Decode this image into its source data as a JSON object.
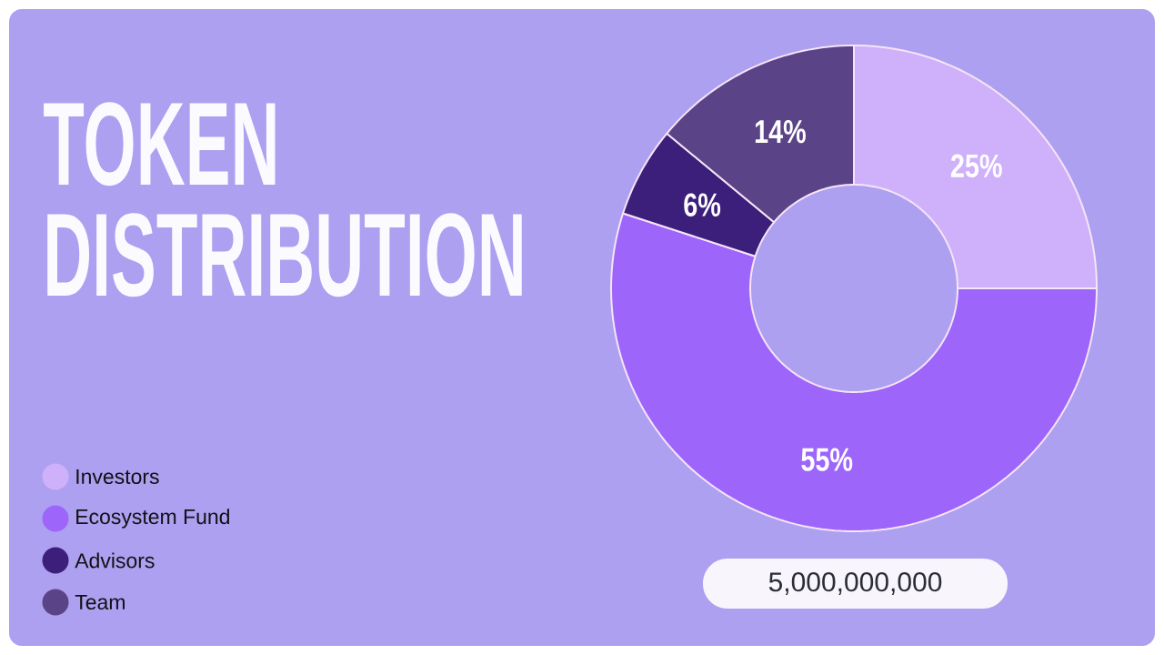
{
  "chart_data": {
    "type": "donut",
    "title": "TOKEN DISTRIBUTION",
    "categories": [
      "Investors",
      "Ecosystem Fund",
      "Advisors",
      "Team"
    ],
    "values": [
      25,
      55,
      6,
      14
    ],
    "colors": [
      "#cfb1fb",
      "#9d65fa",
      "#3c1f7a",
      "#5b4387"
    ],
    "value_labels": [
      "25%",
      "55%",
      "6%",
      "14%"
    ],
    "legend": "bottom left",
    "annotations": [
      "5,000,000,000"
    ]
  }
}
